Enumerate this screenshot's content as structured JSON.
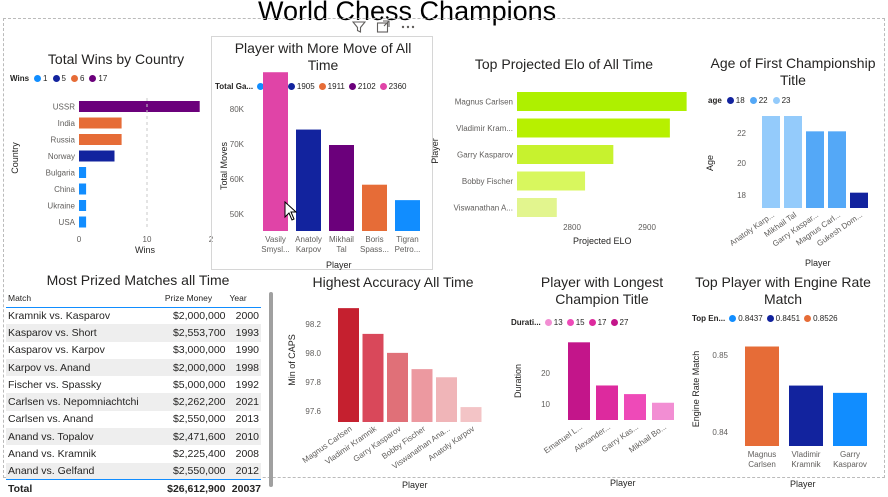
{
  "report_title": "World Chess Champions",
  "visual_header_icons": [
    "filter-icon",
    "focus-mode-icon",
    "more-options-icon"
  ],
  "wins_by_country": {
    "title": "Total Wins by Country",
    "legend_label": "Wins",
    "legend": [
      {
        "label": "1",
        "color": "#118DFF"
      },
      {
        "label": "5",
        "color": "#12239E"
      },
      {
        "label": "6",
        "color": "#E66C37"
      },
      {
        "label": "17",
        "color": "#6B007B"
      }
    ],
    "xlabel": "Wins",
    "ylabel": "Country",
    "ticks": [
      "0",
      "10",
      "2"
    ],
    "chart_data": {
      "type": "bar",
      "orientation": "horizontal",
      "categories": [
        "USSR",
        "India",
        "Russia",
        "Norway",
        "Bulgaria",
        "China",
        "Ukraine",
        "USA"
      ],
      "values": [
        17,
        6,
        6,
        5,
        1,
        1,
        1,
        1
      ],
      "colors": [
        "#6B007B",
        "#E66C37",
        "#E66C37",
        "#12239E",
        "#118DFF",
        "#118DFF",
        "#118DFF",
        "#118DFF"
      ],
      "xlim": [
        0,
        20
      ]
    }
  },
  "most_moves": {
    "title": "Player with More Move of All Time",
    "legend_label": "Total Ga...",
    "legend": [
      {
        "label": "1666",
        "color": "#118DFF"
      },
      {
        "label": "1905",
        "color": "#12239E"
      },
      {
        "label": "1911",
        "color": "#E66C37"
      },
      {
        "label": "2102",
        "color": "#6B007B"
      },
      {
        "label": "2360",
        "color": "#E044A7"
      }
    ],
    "xlabel": "Player",
    "ylabel": "Total Moves",
    "ticks": [
      "80K",
      "70K",
      "60K",
      "50K"
    ],
    "chart_data": {
      "type": "bar",
      "categories": [
        "Vasily Smysl...",
        "Anatoly Karpov",
        "Mikhail Tal",
        "Boris Spass...",
        "Tigran Petro..."
      ],
      "values": [
        82000,
        69000,
        65500,
        56500,
        53000
      ],
      "colors": [
        "#E044A7",
        "#12239E",
        "#6B007B",
        "#E66C37",
        "#118DFF"
      ],
      "ylim": [
        46000,
        85000
      ]
    }
  },
  "elo": {
    "title": "Top Projected Elo of All Time",
    "xlabel": "Projected ELO",
    "ylabel": "Player",
    "ticks": [
      "2800",
      "2900"
    ],
    "chart_data": {
      "type": "bar",
      "orientation": "horizontal",
      "categories": [
        "Magnus Carlsen",
        "Vladimir Kram...",
        "Garry Kasparov",
        "Bobby Fischer",
        "Viswanathan A..."
      ],
      "values": [
        2882,
        2866,
        2812,
        2785,
        2758
      ],
      "colors": [
        "#AEF000",
        "#B7F000",
        "#C7F22E",
        "#D8F75E",
        "#E2F58E"
      ],
      "xlim": [
        2720,
        2890
      ]
    }
  },
  "first_title_age": {
    "title": "Age of First Championship Title",
    "legend_label": "age",
    "legend": [
      {
        "label": "18",
        "color": "#12239E"
      },
      {
        "label": "22",
        "color": "#54A8F7"
      },
      {
        "label": "23",
        "color": "#94CBFB"
      }
    ],
    "xlabel": "Player",
    "ylabel": "Age",
    "ticks": [
      "22",
      "20",
      "18"
    ],
    "chart_data": {
      "type": "bar",
      "categories": [
        "Anatoly Karp...",
        "Mikhail Tal",
        "Garry Kaspar...",
        "Magnus Carl...",
        "Gukesh Dom..."
      ],
      "values": [
        23,
        23,
        22,
        22,
        18
      ],
      "colors": [
        "#94CBFB",
        "#94CBFB",
        "#54A8F7",
        "#54A8F7",
        "#12239E"
      ],
      "ylim": [
        17,
        23
      ]
    }
  },
  "prized_matches": {
    "title": "Most Prized Matches all Time",
    "columns": [
      "Match",
      "Prize Money",
      "Year"
    ],
    "rows": [
      [
        "Kramnik vs. Kasparov",
        "$2,000,000",
        "2000"
      ],
      [
        "Kasparov vs. Short",
        "$2,553,700",
        "1993"
      ],
      [
        "Kasparov vs. Karpov",
        "$3,000,000",
        "1990"
      ],
      [
        "Karpov vs. Anand",
        "$2,000,000",
        "1998"
      ],
      [
        "Fischer vs. Spassky",
        "$5,000,000",
        "1992"
      ],
      [
        "Carlsen vs. Nepomniachtchi",
        "$2,262,200",
        "2021"
      ],
      [
        "Carlsen vs. Anand",
        "$2,550,000",
        "2013"
      ],
      [
        "Anand vs. Topalov",
        "$2,471,600",
        "2010"
      ],
      [
        "Anand vs. Kramnik",
        "$2,225,400",
        "2008"
      ],
      [
        "Anand vs. Gelfand",
        "$2,550,000",
        "2012"
      ]
    ],
    "total": [
      "Total",
      "$26,612,900",
      "20037"
    ]
  },
  "accuracy": {
    "title": "Highest Accuracy All Time",
    "xlabel": "Player",
    "ylabel": "Min of CAPS",
    "ticks": [
      "98.2",
      "98.0",
      "97.8",
      "97.6"
    ],
    "chart_data": {
      "type": "bar",
      "categories": [
        "Magnus Carlsen",
        "Vladimir Kramnik",
        "Garry Kasparov",
        "Bobby Fischer",
        "Viswanathan Ana...",
        "Anatoly Karpov"
      ],
      "values": [
        98.34,
        98.15,
        98.01,
        97.89,
        97.83,
        97.61
      ],
      "colors": [
        "#C5202F",
        "#D9485A",
        "#E07078",
        "#EC99A0",
        "#F0B5B8",
        "#F3C4C6"
      ],
      "ylim": [
        97.5,
        98.4
      ]
    }
  },
  "longest_title": {
    "title": "Player with Longest Champion Title",
    "legend_label": "Durati...",
    "legend": [
      {
        "label": "13",
        "color": "#F28ED3"
      },
      {
        "label": "15",
        "color": "#EE4AB8"
      },
      {
        "label": "17",
        "color": "#DD2A9E"
      },
      {
        "label": "27",
        "color": "#C3158A"
      }
    ],
    "xlabel": "Player",
    "ylabel": "Duration",
    "ticks": [
      "20",
      "10"
    ],
    "chart_data": {
      "type": "bar",
      "categories": [
        "Emanuel L...",
        "Alexander...",
        "Garry Kas...",
        "Mikhail Bo..."
      ],
      "values": [
        27,
        17,
        15,
        13
      ],
      "colors": [
        "#C3158A",
        "#DD2A9E",
        "#EE4AB8",
        "#F28ED3"
      ],
      "ylim": [
        9,
        28
      ]
    }
  },
  "engine_rate": {
    "title": "Top Player with Engine Rate Match",
    "legend_label": "Top En...",
    "legend": [
      {
        "label": "0.8437",
        "color": "#118DFF"
      },
      {
        "label": "0.8451",
        "color": "#12239E"
      },
      {
        "label": "0.8526",
        "color": "#E66C37"
      }
    ],
    "xlabel": "Player",
    "ylabel": "Engine Rate Match",
    "ticks": [
      "0.85",
      "0.84"
    ],
    "chart_data": {
      "type": "bar",
      "categories": [
        "Magnus Carlsen",
        "Vladimir Kramnik",
        "Garry Kasparov"
      ],
      "values": [
        0.8526,
        0.8451,
        0.8437
      ],
      "colors": [
        "#E66C37",
        "#12239E",
        "#118DFF"
      ],
      "ylim": [
        0.8335,
        0.855
      ]
    }
  }
}
